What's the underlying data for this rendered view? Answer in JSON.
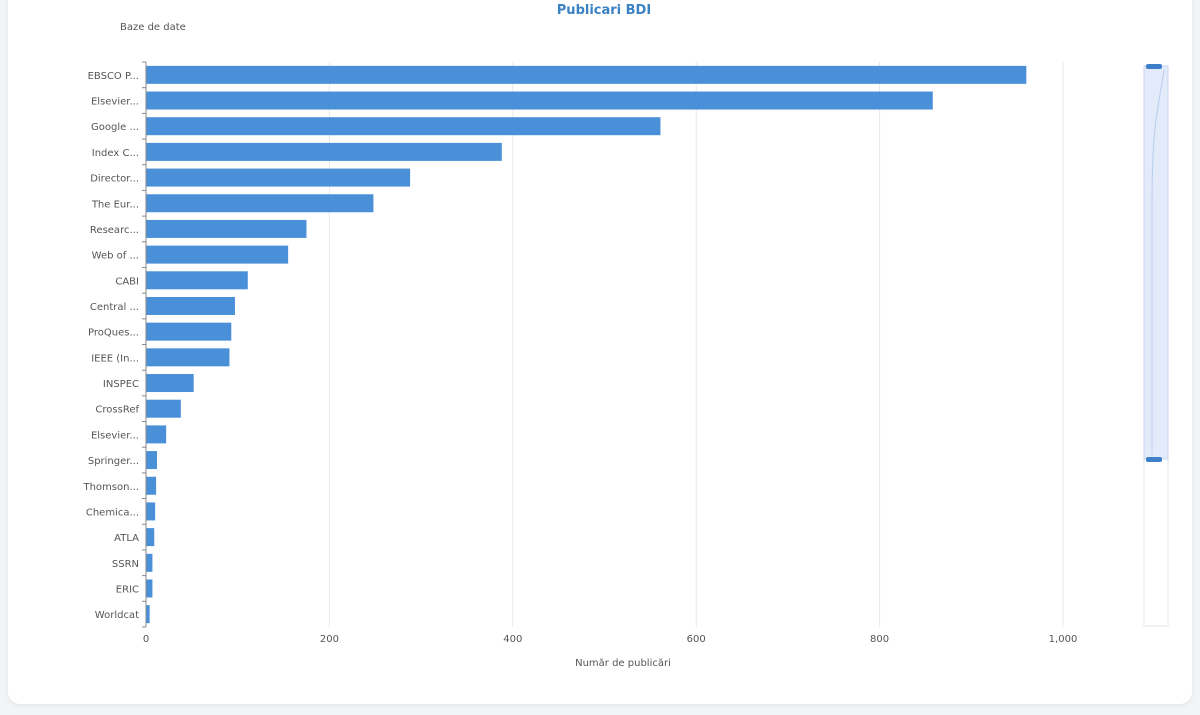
{
  "chart_data": {
    "type": "bar",
    "orientation": "horizontal",
    "title": "Publicari BDI",
    "ylabel": "Baze de date",
    "xlabel": "Număr de publicări",
    "xlim": [
      0,
      1000
    ],
    "xticks": [
      "0",
      "200",
      "400",
      "600",
      "800",
      "1,000"
    ],
    "grid": true,
    "bar_color": "#4a90d9",
    "categories": [
      "EBSCO P...",
      "Elsevier...",
      "Google ...",
      "Index C...",
      "Director...",
      "The Eur...",
      "Researc...",
      "Web of ...",
      "CABI",
      "Central ...",
      "ProQues...",
      "IEEE (In...",
      "INSPEC",
      "CrossRef",
      "Elsevier...",
      "Springer...",
      "Thomson...",
      "Chemica...",
      "ATLA",
      "SSRN",
      "ERIC",
      "Worldcat"
    ],
    "values": [
      960,
      858,
      561,
      388,
      288,
      248,
      175,
      155,
      111,
      97,
      93,
      91,
      52,
      38,
      22,
      12,
      11,
      10,
      9,
      7,
      7,
      4
    ]
  }
}
